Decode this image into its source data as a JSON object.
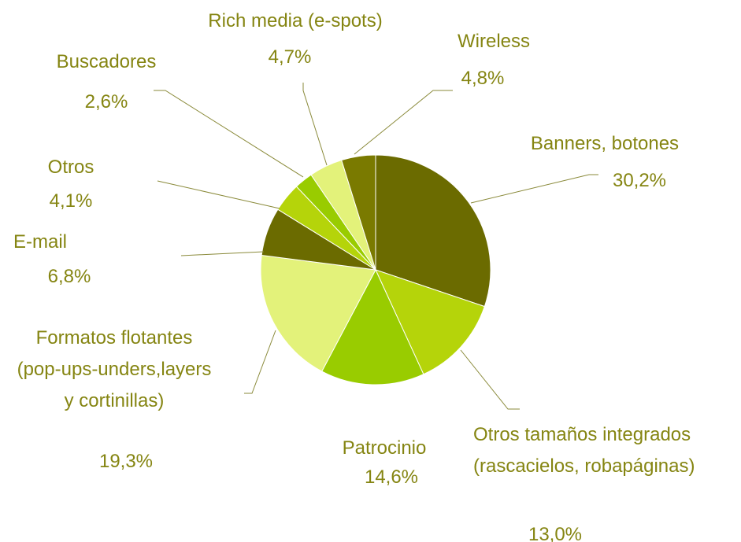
{
  "chart_data": {
    "type": "pie",
    "categories": [
      "Banners, botones",
      "Otros tamaños integrados (rascacielos, robapáginas)",
      "Patrocinio",
      "Formatos flotantes (pop-ups-unders,layers y cortinillas)",
      "E-mail",
      "Otros",
      "Buscadores",
      "Rich media (e-spots)",
      "Wireless"
    ],
    "values": [
      30.2,
      13.0,
      14.6,
      19.3,
      6.8,
      4.1,
      2.6,
      4.7,
      4.8
    ],
    "value_labels": [
      "30,2%",
      "13,0%",
      "14,6%",
      "19,3%",
      "6,8%",
      "4,1%",
      "2,6%",
      "4,7%",
      "4,8%"
    ],
    "colors": [
      "#6b6b00",
      "#b5d40a",
      "#99cc00",
      "#e3f27a",
      "#6b6b00",
      "#b5d40a",
      "#99cc00",
      "#e3f27a",
      "#7a7a00"
    ]
  }
}
